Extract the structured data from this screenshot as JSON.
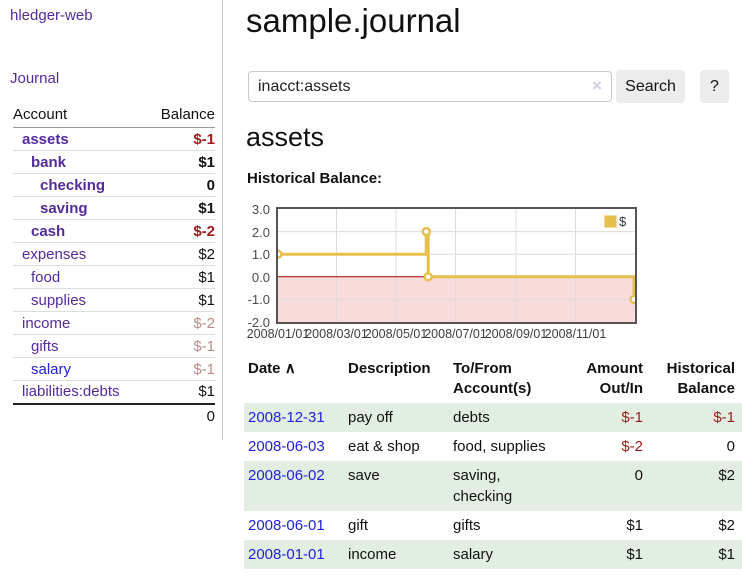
{
  "sidebar": {
    "app_title": "hledger-web",
    "journal_link": "Journal",
    "accounts": {
      "headers": {
        "account": "Account",
        "balance": "Balance"
      },
      "rows": [
        {
          "name": "assets",
          "balance": "$-1",
          "indent": 1,
          "bold": true,
          "name_style": "purple",
          "balance_style": "neg-strong"
        },
        {
          "name": "bank",
          "balance": "$1",
          "indent": 2,
          "bold": true,
          "name_style": "purple",
          "balance_style": "pos"
        },
        {
          "name": "checking",
          "balance": "0",
          "indent": 3,
          "bold": true,
          "name_style": "purple",
          "balance_style": "pos"
        },
        {
          "name": "saving",
          "balance": "$1",
          "indent": 3,
          "bold": true,
          "name_style": "purple",
          "balance_style": "pos"
        },
        {
          "name": "cash",
          "balance": "$-2",
          "indent": 2,
          "bold": true,
          "name_style": "purple",
          "balance_style": "neg-strong"
        },
        {
          "name": "expenses",
          "balance": "$2",
          "indent": 1,
          "bold": false,
          "name_style": "purple",
          "balance_style": "pos"
        },
        {
          "name": "food",
          "balance": "$1",
          "indent": 2,
          "bold": false,
          "name_style": "purple",
          "balance_style": "pos"
        },
        {
          "name": "supplies",
          "balance": "$1",
          "indent": 2,
          "bold": false,
          "name_style": "purple",
          "balance_style": "pos"
        },
        {
          "name": "income",
          "balance": "$-2",
          "indent": 1,
          "bold": false,
          "name_style": "purple",
          "balance_style": "neg-soft"
        },
        {
          "name": "gifts",
          "balance": "$-1",
          "indent": 2,
          "bold": false,
          "name_style": "purple",
          "balance_style": "neg-soft"
        },
        {
          "name": "salary",
          "balance": "$-1",
          "indent": 2,
          "bold": false,
          "name_style": "blue",
          "balance_style": "neg-soft"
        },
        {
          "name": "liabilities:debts",
          "balance": "$1",
          "indent": 1,
          "bold": false,
          "name_style": "purple",
          "balance_style": "pos"
        }
      ],
      "total": "0"
    }
  },
  "main": {
    "title": "sample.journal",
    "search": {
      "value": "inacct:assets",
      "clear_icon": "×",
      "search_button": "Search",
      "help_button": "?"
    },
    "account_heading": "assets",
    "chart_label": "Historical Balance:"
  },
  "chart_data": {
    "type": "line",
    "style": "step-horizontal",
    "title": "Historical Balance",
    "series": [
      {
        "name": "$",
        "color": "#e6c04c",
        "points": [
          [
            "2008-01-01",
            1
          ],
          [
            "2008-06-01",
            2
          ],
          [
            "2008-06-03",
            0
          ],
          [
            "2008-12-31",
            -1
          ]
        ]
      }
    ],
    "x_range": [
      "2008-01-01",
      "2009-01-01"
    ],
    "x_ticks": [
      "2008/01/01",
      "2008/03/01",
      "2008/05/01",
      "2008/07/01",
      "2008/09/01",
      "2008/11/01"
    ],
    "y_ticks": [
      "3.0",
      "2.0",
      "1.0",
      "0.0",
      "-1.0",
      "-2.0"
    ],
    "ylim": [
      -2,
      3
    ],
    "grid": true,
    "grid_color": "#dcdcdc",
    "zero_line_color": "#a40000",
    "negative_region_color": "#fadbdb",
    "legend_position": "top-right",
    "legend_label": "$"
  },
  "transactions": {
    "headers": {
      "date": {
        "line1": "Date",
        "sort_icon": "∧"
      },
      "description": {
        "line1": "Description"
      },
      "accounts": {
        "line1": "To/From",
        "line2": "Account(s)"
      },
      "amount": {
        "line1": "Amount",
        "line2": "Out/In"
      },
      "balance": {
        "line1": "Historical",
        "line2": "Balance"
      }
    },
    "rows": [
      {
        "date": "2008-12-31",
        "description": "pay off",
        "accounts": "debts",
        "amount": "$-1",
        "balance": "$-1",
        "shaded": true
      },
      {
        "date": "2008-06-03",
        "description": "eat & shop",
        "accounts": "food, supplies",
        "amount": "$-2",
        "balance": "0",
        "shaded": false
      },
      {
        "date": "2008-06-02",
        "description": "save",
        "accounts": "saving, checking",
        "amount": "0",
        "balance": "$2",
        "shaded": true
      },
      {
        "date": "2008-06-01",
        "description": "gift",
        "accounts": "gifts",
        "amount": "$1",
        "balance": "$2",
        "shaded": false
      },
      {
        "date": "2008-01-01",
        "description": "income",
        "accounts": "salary",
        "amount": "$1",
        "balance": "$1",
        "shaded": true
      }
    ]
  }
}
